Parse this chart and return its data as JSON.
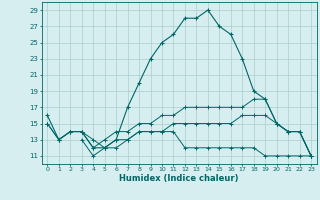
{
  "xlabel": "Humidex (Indice chaleur)",
  "bg_color": "#d6eef0",
  "grid_color": "#aacccc",
  "line_color": "#006666",
  "xlim": [
    -0.5,
    23.5
  ],
  "ylim": [
    10,
    30
  ],
  "yticks": [
    11,
    13,
    15,
    17,
    19,
    21,
    23,
    25,
    27,
    29
  ],
  "xticks": [
    0,
    1,
    2,
    3,
    4,
    5,
    6,
    7,
    8,
    9,
    10,
    11,
    12,
    13,
    14,
    15,
    16,
    17,
    18,
    19,
    20,
    21,
    22,
    23
  ],
  "line1": {
    "x": [
      0,
      1,
      2,
      3,
      4,
      5,
      6,
      7,
      8,
      9,
      10,
      11,
      12,
      13,
      14,
      15,
      16,
      17,
      18,
      19,
      20,
      21,
      22,
      23
    ],
    "y": [
      16,
      13,
      14,
      14,
      12,
      12,
      13,
      17,
      20,
      23,
      25,
      26,
      28,
      28,
      29,
      27,
      26,
      23,
      19,
      18,
      15,
      14,
      14,
      11
    ]
  },
  "line2": {
    "x": [
      0,
      1,
      2,
      3,
      4,
      5,
      6,
      7,
      8,
      9,
      10,
      11,
      12,
      13,
      14,
      15,
      16,
      17,
      18,
      19,
      20,
      21,
      22,
      23
    ],
    "y": [
      15,
      13,
      14,
      14,
      12,
      13,
      14,
      14,
      15,
      15,
      16,
      16,
      17,
      17,
      17,
      17,
      17,
      17,
      18,
      18,
      15,
      14,
      14,
      11
    ]
  },
  "line3": {
    "x": [
      0,
      1,
      2,
      3,
      4,
      5,
      6,
      7,
      8,
      9,
      10,
      11,
      12,
      13,
      14,
      15,
      16,
      17,
      18,
      19,
      20,
      21,
      22,
      23
    ],
    "y": [
      15,
      13,
      14,
      14,
      13,
      12,
      13,
      13,
      14,
      14,
      14,
      15,
      15,
      15,
      15,
      15,
      15,
      16,
      16,
      16,
      15,
      14,
      14,
      11
    ]
  },
  "line4": {
    "x": [
      3,
      4,
      5,
      6,
      7,
      8,
      9,
      10,
      11,
      12,
      13,
      14,
      15,
      16,
      17,
      18,
      19,
      20,
      21,
      22,
      23
    ],
    "y": [
      13,
      11,
      12,
      12,
      13,
      14,
      14,
      14,
      14,
      12,
      12,
      12,
      12,
      12,
      12,
      12,
      11,
      11,
      11,
      11,
      11
    ]
  }
}
